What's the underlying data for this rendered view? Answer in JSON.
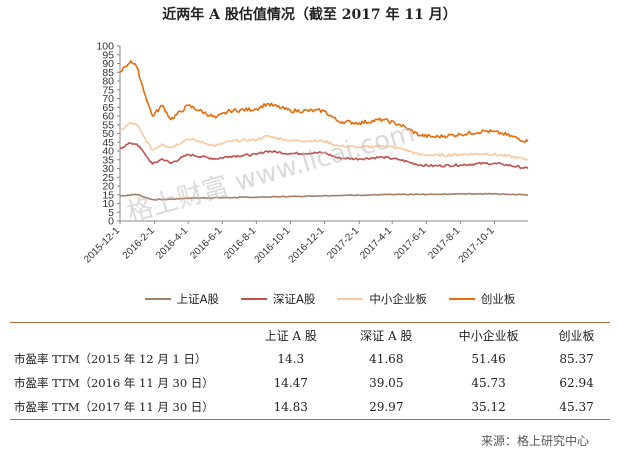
{
  "title": "近两年 A 股估值情况（截至 2017 年 11 月）",
  "watermark": "格上财富 www.licai.com",
  "chart_data": {
    "type": "line",
    "ylim": [
      0,
      100
    ],
    "yticks": [
      0,
      5,
      10,
      15,
      20,
      25,
      30,
      35,
      40,
      45,
      50,
      55,
      60,
      65,
      70,
      75,
      80,
      85,
      90,
      95,
      100
    ],
    "xlim": [
      "2015-12-01",
      "2017-11-30"
    ],
    "xticks": [
      "2015-12-1",
      "2016-2-1",
      "2016-4-1",
      "2016-6-1",
      "2016-8-1",
      "2016-10-1",
      "2016-12-1",
      "2017-2-1",
      "2017-4-1",
      "2017-6-1",
      "2017-8-1",
      "2017-10-1"
    ],
    "grid": false,
    "legend_position": "bottom",
    "series": [
      {
        "name": "上证A股",
        "color": "#a08068",
        "points": [
          [
            "2015-12-01",
            14.3
          ],
          [
            "2015-12-31",
            15.2
          ],
          [
            "2016-01-15",
            13.5
          ],
          [
            "2016-01-28",
            12.2
          ],
          [
            "2016-02-29",
            12.4
          ],
          [
            "2016-04-01",
            13.1
          ],
          [
            "2016-06-01",
            13.3
          ],
          [
            "2016-08-01",
            13.6
          ],
          [
            "2016-10-01",
            14.0
          ],
          [
            "2016-11-30",
            14.47
          ],
          [
            "2017-02-01",
            14.8
          ],
          [
            "2017-04-01",
            15.1
          ],
          [
            "2017-06-01",
            15.2
          ],
          [
            "2017-08-01",
            15.5
          ],
          [
            "2017-10-01",
            15.6
          ],
          [
            "2017-11-30",
            14.83
          ]
        ]
      },
      {
        "name": "深证A股",
        "color": "#c0504d",
        "points": [
          [
            "2015-12-01",
            41.68
          ],
          [
            "2015-12-20",
            44.5
          ],
          [
            "2015-12-31",
            44.0
          ],
          [
            "2016-01-15",
            38.0
          ],
          [
            "2016-01-28",
            32.5
          ],
          [
            "2016-02-15",
            35.5
          ],
          [
            "2016-03-01",
            33.0
          ],
          [
            "2016-04-01",
            38.0
          ],
          [
            "2016-05-20",
            35.5
          ],
          [
            "2016-06-15",
            37.0
          ],
          [
            "2016-08-01",
            38.0
          ],
          [
            "2016-08-20",
            40.0
          ],
          [
            "2016-10-01",
            38.5
          ],
          [
            "2016-11-30",
            39.05
          ],
          [
            "2016-12-25",
            36.0
          ],
          [
            "2017-02-01",
            35.5
          ],
          [
            "2017-03-15",
            36.5
          ],
          [
            "2017-04-15",
            35.0
          ],
          [
            "2017-05-20",
            32.0
          ],
          [
            "2017-06-15",
            31.5
          ],
          [
            "2017-08-01",
            32.0
          ],
          [
            "2017-09-15",
            33.0
          ],
          [
            "2017-10-15",
            32.5
          ],
          [
            "2017-11-30",
            29.97
          ]
        ]
      },
      {
        "name": "中小企业板",
        "color": "#f7c9a0",
        "points": [
          [
            "2015-12-01",
            51.46
          ],
          [
            "2015-12-20",
            56.0
          ],
          [
            "2015-12-31",
            55.0
          ],
          [
            "2016-01-15",
            47.0
          ],
          [
            "2016-01-28",
            40.5
          ],
          [
            "2016-02-15",
            44.0
          ],
          [
            "2016-03-01",
            42.0
          ],
          [
            "2016-04-01",
            47.0
          ],
          [
            "2016-05-20",
            43.0
          ],
          [
            "2016-06-15",
            45.5
          ],
          [
            "2016-08-01",
            46.5
          ],
          [
            "2016-08-20",
            48.5
          ],
          [
            "2016-10-01",
            46.0
          ],
          [
            "2016-11-30",
            45.73
          ],
          [
            "2016-12-25",
            43.0
          ],
          [
            "2017-02-01",
            42.0
          ],
          [
            "2017-03-15",
            43.0
          ],
          [
            "2017-04-15",
            41.5
          ],
          [
            "2017-05-20",
            38.0
          ],
          [
            "2017-06-15",
            37.5
          ],
          [
            "2017-08-01",
            38.0
          ],
          [
            "2017-09-15",
            38.5
          ],
          [
            "2017-10-15",
            37.5
          ],
          [
            "2017-11-30",
            35.12
          ]
        ]
      },
      {
        "name": "创业板",
        "color": "#e46c0a",
        "points": [
          [
            "2015-12-01",
            85.37
          ],
          [
            "2015-12-10",
            88.0
          ],
          [
            "2015-12-20",
            91.5
          ],
          [
            "2015-12-31",
            88.0
          ],
          [
            "2016-01-15",
            72.0
          ],
          [
            "2016-01-28",
            60.0
          ],
          [
            "2016-02-15",
            66.0
          ],
          [
            "2016-03-01",
            58.0
          ],
          [
            "2016-04-01",
            66.0
          ],
          [
            "2016-05-20",
            59.0
          ],
          [
            "2016-06-15",
            63.0
          ],
          [
            "2016-08-01",
            64.0
          ],
          [
            "2016-08-20",
            67.0
          ],
          [
            "2016-10-01",
            63.0
          ],
          [
            "2016-11-30",
            62.94
          ],
          [
            "2016-12-25",
            57.0
          ],
          [
            "2017-02-01",
            56.0
          ],
          [
            "2017-03-15",
            58.0
          ],
          [
            "2017-04-15",
            55.0
          ],
          [
            "2017-05-20",
            49.0
          ],
          [
            "2017-06-15",
            48.0
          ],
          [
            "2017-08-01",
            49.5
          ],
          [
            "2017-09-15",
            51.5
          ],
          [
            "2017-10-15",
            50.0
          ],
          [
            "2017-11-30",
            45.37
          ]
        ]
      }
    ]
  },
  "table": {
    "headers": [
      "",
      "上证 A 股",
      "深证 A 股",
      "中小企业板",
      "创业板"
    ],
    "rows": [
      {
        "label": "市盈率 TTM（2015 年 12 月 1 日）",
        "values": [
          "14.3",
          "41.68",
          "51.46",
          "85.37"
        ]
      },
      {
        "label": "市盈率 TTM（2016 年 11 月 30 日）",
        "values": [
          "14.47",
          "39.05",
          "45.73",
          "62.94"
        ]
      },
      {
        "label": "市盈率 TTM（2017 年 11 月 30 日）",
        "values": [
          "14.83",
          "29.97",
          "35.12",
          "45.37"
        ]
      }
    ]
  },
  "source": "来源：格上研究中心"
}
